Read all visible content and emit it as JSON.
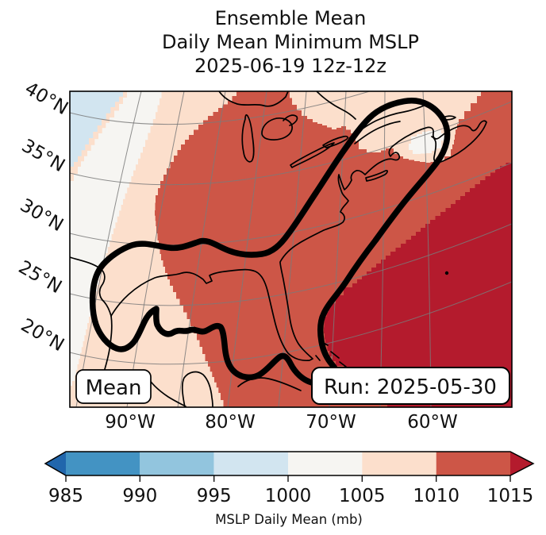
{
  "title": {
    "line1": "Ensemble Mean",
    "line2": "Daily Mean Minimum MSLP",
    "line3": "2025-06-19 12z-12z"
  },
  "map": {
    "lat_labels": [
      "40°N",
      "35°N",
      "30°N",
      "25°N",
      "20°N"
    ],
    "lon_labels": [
      "90°W",
      "80°W",
      "70°W",
      "60°W"
    ],
    "mean_label": "Mean",
    "run_label": "Run: 2025-05-30"
  },
  "colorbar": {
    "ticks": [
      "985",
      "990",
      "995",
      "1000",
      "1005",
      "1010",
      "1015"
    ],
    "label": "MSLP Daily Mean (mb)",
    "under_color": "#2166ac",
    "segment_colors": [
      "#4393c3",
      "#92c5de",
      "#d2e5f0",
      "#f6f5f2",
      "#fcdfcc",
      "#cd5647"
    ],
    "over_color": "#b41b2d"
  },
  "chart_data": {
    "type": "heatmap",
    "subtype": "filled_contour_geographic_map",
    "title": "Ensemble Mean / Daily Mean Minimum MSLP / 2025-06-19 12z-12z",
    "statistic": "Ensemble Mean",
    "valid_time": "2025-06-19 12z-12z",
    "run_date": "2025-05-30",
    "variable": "MSLP Daily Mean",
    "units": "mb",
    "levels": [
      985,
      990,
      995,
      1000,
      1005,
      1010,
      1015
    ],
    "colormap": "RdBu_r discrete with under/over arrow extensions",
    "colorbar_label": "MSLP Daily Mean (mb)",
    "geographic_extent": {
      "lon_west": "~97°W",
      "lon_east": "~57°W",
      "lat_south": "~18°N",
      "lat_north": "~41°N"
    },
    "graticule": {
      "parallels_deg_N": [
        20,
        25,
        30,
        35,
        40
      ],
      "meridians_deg_W": [
        95,
        90,
        85,
        80,
        75,
        70,
        65,
        60
      ]
    },
    "field_regions": [
      {
        "region": "far northwest corner (central plains)",
        "value_mb": "995-1000"
      },
      {
        "region": "diagonal band along northwest edge",
        "value_mb": "1000-1005"
      },
      {
        "region": "west edge and northern strip (Canada, Gulf of St. Lawrence)",
        "value_mb": "1005-1010"
      },
      {
        "region": "pocket around Nova Scotia / Gulf of Maine",
        "value_mb": "1000-1005"
      },
      {
        "region": "most of eastern US, Great Lakes, Gulf of Mexico",
        "value_mb": "1010-1015"
      },
      {
        "region": "southwest Atlantic subtropical high (lower right)",
        "value_mb": "greater than 1015"
      }
    ],
    "annotation_contour": "single thick black closed contour enclosing the Gulf of Mexico and the Eastern Seaboard corridor from Texas/Yucatan up to Nova Scotia"
  }
}
